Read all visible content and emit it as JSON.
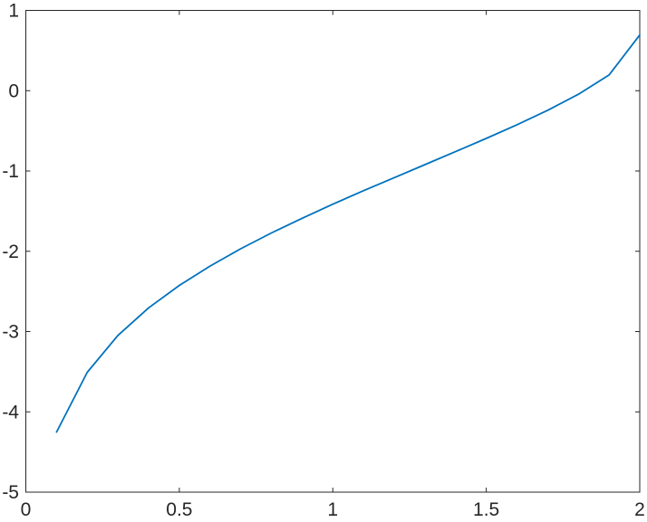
{
  "figure": {
    "background_color": "#ffffff"
  },
  "chart_data": {
    "type": "line",
    "title": "",
    "xlabel": "",
    "ylabel": "",
    "xlim": [
      0,
      2
    ],
    "ylim": [
      -5,
      1
    ],
    "x_ticks": [
      0,
      0.5,
      1,
      1.5,
      2
    ],
    "x_tick_labels": [
      "0",
      "0.5",
      "1",
      "1.5",
      "2"
    ],
    "y_ticks": [
      -5,
      -4,
      -3,
      -2,
      -1,
      0,
      1
    ],
    "y_tick_labels": [
      "-5",
      "-4",
      "-3",
      "-2",
      "-1",
      "0",
      "1"
    ],
    "grid": false,
    "box": true,
    "tick_direction": "in",
    "legend": null,
    "axis_color": "#262626",
    "tick_label_color": "#262626",
    "series": [
      {
        "name": "series-1",
        "color": "#0072BD",
        "x": [
          0.1,
          0.2,
          0.3,
          0.4,
          0.5,
          0.6,
          0.7,
          0.8,
          0.9,
          1.0,
          1.1,
          1.2,
          1.3,
          1.4,
          1.5,
          1.6,
          1.7,
          1.8,
          1.9,
          2.0
        ],
        "y": [
          -4.252,
          -3.507,
          -3.048,
          -2.705,
          -2.425,
          -2.184,
          -1.969,
          -1.772,
          -1.589,
          -1.414,
          -1.246,
          -1.083,
          -0.921,
          -0.759,
          -0.594,
          -0.424,
          -0.244,
          -0.045,
          0.195,
          0.693
        ]
      }
    ]
  }
}
